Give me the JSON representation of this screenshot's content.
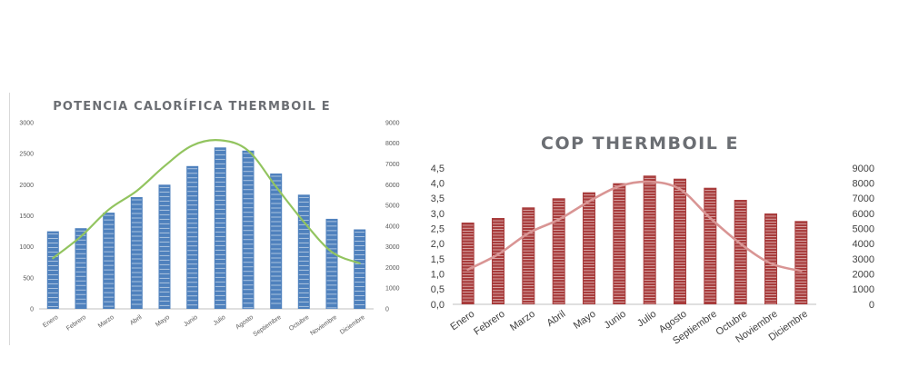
{
  "chart_data": [
    {
      "type": "bar",
      "title": "POTENCIA CALORÍFICA THERMBOIL E",
      "categories": [
        "Enero",
        "Febrero",
        "Marzo",
        "Abril",
        "Mayo",
        "Junio",
        "Julio",
        "Agosto",
        "Septiembre",
        "Octubre",
        "Noviembre",
        "Diciembre"
      ],
      "series": [
        {
          "values": [
            1250,
            1300,
            1550,
            1800,
            2000,
            2300,
            2600,
            2550,
            2180,
            1840,
            1450,
            1280
          ],
          "color": "#4f81bd",
          "axis": "left"
        },
        {
          "type": "line",
          "values": [
            2450,
            3500,
            4800,
            5700,
            6900,
            7900,
            8150,
            7650,
            5900,
            4200,
            2750,
            2200
          ],
          "color": "#92c45f",
          "axis": "right"
        }
      ],
      "ylim": [
        0,
        3000
      ],
      "y_ticks": [
        "0",
        "500",
        "1000",
        "1500",
        "2000",
        "2500",
        "3000"
      ],
      "y2lim": [
        0,
        9000
      ],
      "y2_ticks": [
        "0",
        "1000",
        "2000",
        "3000",
        "4000",
        "5000",
        "6000",
        "7000",
        "8000",
        "9000"
      ],
      "grid": false,
      "legend": "none"
    },
    {
      "type": "bar",
      "title": "COP THERMBOIL E",
      "categories": [
        "Enero",
        "Febrero",
        "Marzo",
        "Abril",
        "Mayo",
        "Junio",
        "Julio",
        "Agosto",
        "Septiembre",
        "Octubre",
        "Noviembre",
        "Diciembre"
      ],
      "series": [
        {
          "values": [
            2.7,
            2.85,
            3.2,
            3.5,
            3.7,
            4.0,
            4.25,
            4.15,
            3.85,
            3.45,
            3.0,
            2.75
          ],
          "color": "#a83c3c",
          "axis": "left"
        },
        {
          "type": "line",
          "values": [
            2300,
            3300,
            4700,
            5600,
            6800,
            7800,
            8100,
            7600,
            5700,
            4000,
            2700,
            2200
          ],
          "color": "#d99594",
          "axis": "right"
        }
      ],
      "ylim": [
        0,
        4.5
      ],
      "y_ticks": [
        "0,0",
        "0,5",
        "1,0",
        "1,5",
        "2,0",
        "2,5",
        "3,0",
        "3,5",
        "4,0",
        "4,5"
      ],
      "y2lim": [
        0,
        9000
      ],
      "y2_ticks": [
        "0",
        "1000",
        "2000",
        "3000",
        "4000",
        "5000",
        "6000",
        "7000",
        "8000",
        "9000"
      ],
      "grid": false,
      "legend": "none"
    }
  ]
}
